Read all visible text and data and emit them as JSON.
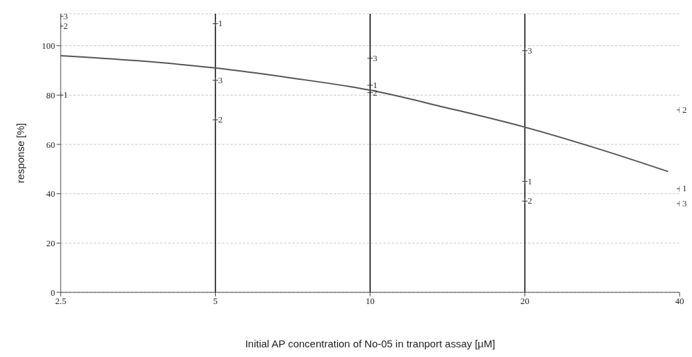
{
  "chart_data": {
    "type": "scatter",
    "xlabel": "Initial AP concentration of No-05 in tranport assay [µM]",
    "ylabel": "response [%]",
    "log": "x",
    "xlim": [
      2.5,
      40
    ],
    "xticks": [
      2.5,
      5,
      10,
      20,
      40
    ],
    "ylim": [
      0,
      113
    ],
    "yticks": [
      0,
      20,
      40,
      60,
      80,
      100
    ],
    "grid": "y",
    "legend": false,
    "marker": "cross",
    "ref_lines": [
      {
        "axis": "x",
        "value": 5,
        "color": "#000000"
      },
      {
        "axis": "x",
        "value": 10,
        "color": "#000000"
      },
      {
        "axis": "x",
        "value": 20,
        "color": "#000000"
      }
    ],
    "series": [
      {
        "name": "1",
        "color": "#333333",
        "x": [
          2.5,
          5,
          10,
          20,
          40
        ],
        "values": [
          80,
          109,
          84,
          45,
          42
        ]
      },
      {
        "name": "2",
        "color": "#333333",
        "x": [
          2.5,
          5,
          10,
          20,
          40
        ],
        "values": [
          108,
          70,
          81,
          37,
          74
        ]
      },
      {
        "name": "3",
        "color": "#333333",
        "x": [
          2.5,
          5,
          10,
          20,
          40
        ],
        "values": [
          112,
          86,
          95,
          98,
          36
        ]
      },
      {
        "type": "line",
        "color": "#555555",
        "marker": "none",
        "line_style": "solid",
        "x": [
          2.5,
          3.5,
          5,
          7,
          10,
          14,
          20,
          28,
          38
        ],
        "values": [
          96,
          94,
          91,
          87,
          82,
          75,
          67,
          58,
          49
        ]
      }
    ]
  }
}
